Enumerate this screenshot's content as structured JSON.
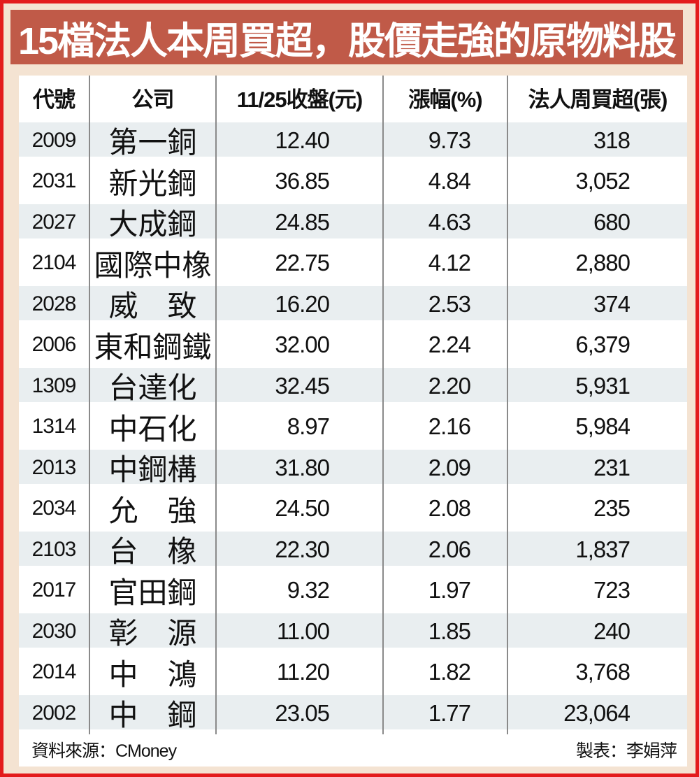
{
  "title": "15檔法人本周買超，股價走強的原物料股",
  "chart_data": {
    "type": "table",
    "title": "15檔法人本周買超，股價走強的原物料股",
    "columns": [
      "代號",
      "公司",
      "11/25收盤(元)",
      "漲幅(%)",
      "法人周買超(張)"
    ],
    "rows": [
      [
        "2009",
        "第一銅",
        "12.40",
        "9.73",
        "318"
      ],
      [
        "2031",
        "新光鋼",
        "36.85",
        "4.84",
        "3,052"
      ],
      [
        "2027",
        "大成鋼",
        "24.85",
        "4.63",
        "680"
      ],
      [
        "2104",
        "國際中橡",
        "22.75",
        "4.12",
        "2,880"
      ],
      [
        "2028",
        "威　致",
        "16.20",
        "2.53",
        "374"
      ],
      [
        "2006",
        "東和鋼鐵",
        "32.00",
        "2.24",
        "6,379"
      ],
      [
        "1309",
        "台達化",
        "32.45",
        "2.20",
        "5,931"
      ],
      [
        "1314",
        "中石化",
        "8.97",
        "2.16",
        "5,984"
      ],
      [
        "2013",
        "中鋼構",
        "31.80",
        "2.09",
        "231"
      ],
      [
        "2034",
        "允　強",
        "24.50",
        "2.08",
        "235"
      ],
      [
        "2103",
        "台　橡",
        "22.30",
        "2.06",
        "1,837"
      ],
      [
        "2017",
        "官田鋼",
        "9.32",
        "1.97",
        "723"
      ],
      [
        "2030",
        "彰　源",
        "11.00",
        "1.85",
        "240"
      ],
      [
        "2014",
        "中　鴻",
        "11.20",
        "1.82",
        "3,768"
      ],
      [
        "2002",
        "中　鋼",
        "23.05",
        "1.77",
        "23,064"
      ]
    ],
    "source": "資料來源：CMoney",
    "credit": "製表：李娟萍",
    "layout": {
      "striped_rows": "odd",
      "stripe_color": "#e9eef0",
      "grid": "vertical-only"
    }
  },
  "footer": {
    "source": "資料來源：CMoney",
    "credit": "製表：李娟萍"
  },
  "colors": {
    "frame_red": "#e31b1c",
    "banner": "#c05a48",
    "background": "#f4e3d2",
    "stripe": "#e9eef0",
    "divider": "#8a8a8a",
    "text": "#111111",
    "title_text": "#ffffff"
  }
}
